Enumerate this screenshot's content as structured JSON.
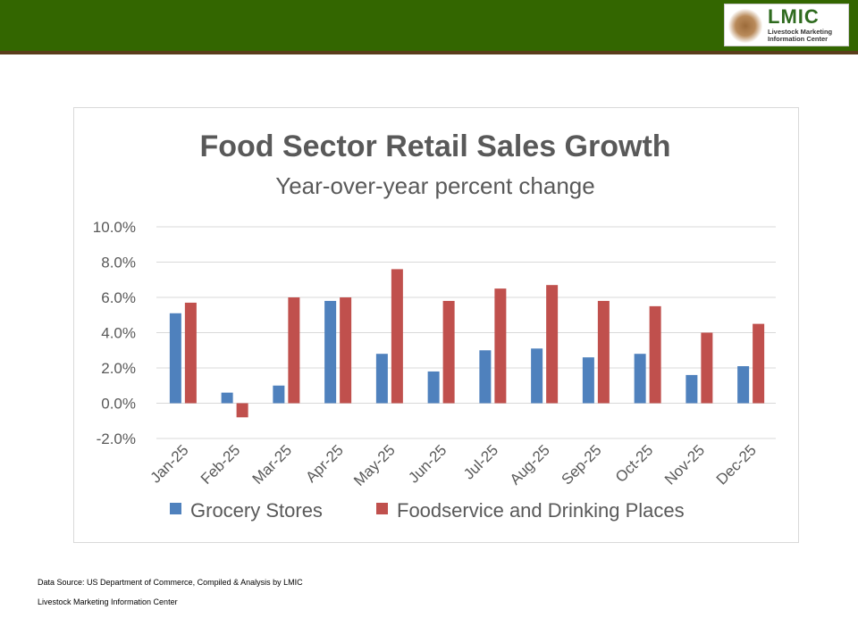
{
  "header": {
    "logo_text": "LMIC",
    "logo_subtitle": "Livestock Marketing Information Center"
  },
  "chart_data": {
    "type": "bar",
    "title": "Food Sector Retail Sales Growth",
    "subtitle": "Year-over-year percent change",
    "categories": [
      "Jan-25",
      "Feb-25",
      "Mar-25",
      "Apr-25",
      "May-25",
      "Jun-25",
      "Jul-25",
      "Aug-25",
      "Sep-25",
      "Oct-25",
      "Nov-25",
      "Dec-25"
    ],
    "series": [
      {
        "name": "Grocery Stores",
        "color": "#4f81bd",
        "values": [
          5.1,
          0.6,
          1.0,
          5.8,
          2.8,
          1.8,
          3.0,
          3.1,
          2.6,
          2.8,
          1.6,
          2.1
        ]
      },
      {
        "name": "Foodservice and Drinking Places",
        "color": "#c0504d",
        "values": [
          5.7,
          -0.8,
          6.0,
          6.0,
          7.6,
          5.8,
          6.5,
          6.7,
          5.8,
          5.5,
          4.0,
          4.5
        ]
      }
    ],
    "ylim": [
      -2,
      10
    ],
    "yticks": [
      "-2.0%",
      "0.0%",
      "2.0%",
      "4.0%",
      "6.0%",
      "8.0%",
      "10.0%"
    ],
    "grid": true,
    "legend": "bottom"
  },
  "footer": {
    "source": "Data Source:  US Department of Commerce, Compiled & Analysis by LMIC",
    "org": "Livestock Marketing Information Center"
  }
}
